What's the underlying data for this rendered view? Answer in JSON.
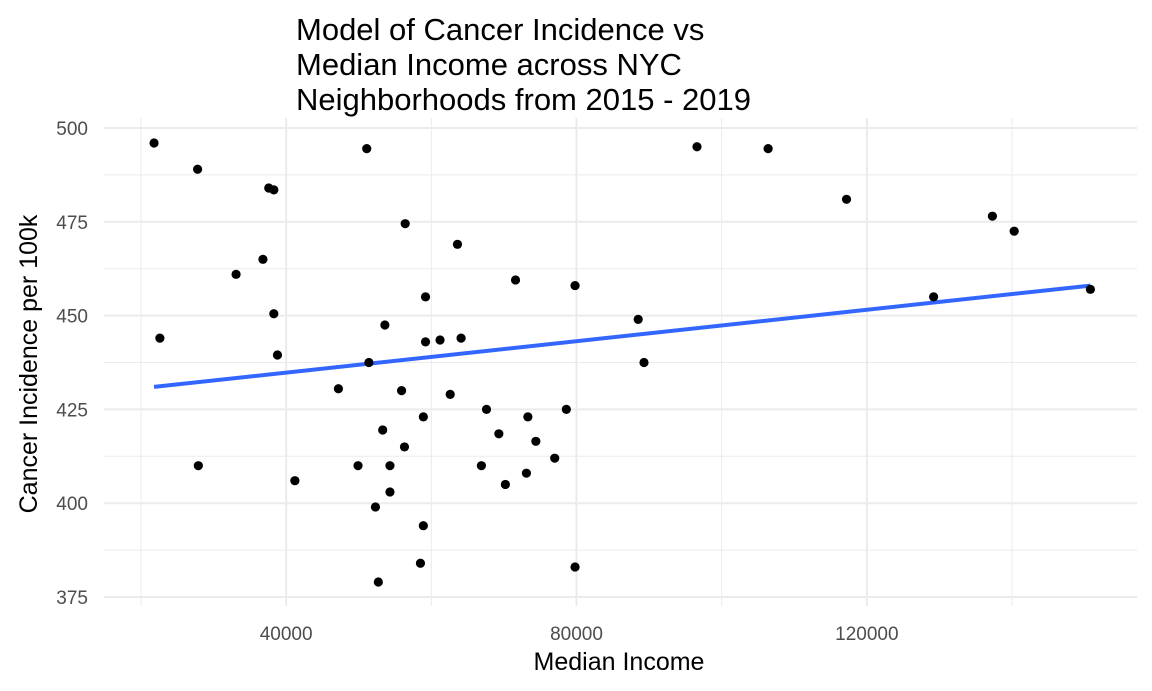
{
  "chart_data": {
    "type": "scatter",
    "title": "Model of Cancer Incidence vs\nMedian Income across NYC\nNeighborhoods from 2015 - 2019",
    "xlabel": "Median Income",
    "ylabel": "Cancer Incidence per 100k",
    "xlim": [
      12000,
      150000
    ],
    "ylim": [
      372,
      500
    ],
    "x_ticks": [
      40000,
      80000,
      120000
    ],
    "y_ticks": [
      375,
      400,
      425,
      450,
      475,
      500
    ],
    "grid": true,
    "legend": "none",
    "point_color": "#000000",
    "fit_color": "#3366ff",
    "grid_color": "#ebebeb",
    "points": [
      {
        "x": 21800,
        "y": 496
      },
      {
        "x": 22600,
        "y": 444
      },
      {
        "x": 27800,
        "y": 489
      },
      {
        "x": 27900,
        "y": 410
      },
      {
        "x": 33100,
        "y": 461
      },
      {
        "x": 36800,
        "y": 465
      },
      {
        "x": 37600,
        "y": 484
      },
      {
        "x": 38300,
        "y": 483.5
      },
      {
        "x": 38300,
        "y": 450.5
      },
      {
        "x": 38800,
        "y": 439.5
      },
      {
        "x": 41200,
        "y": 406
      },
      {
        "x": 47200,
        "y": 430.5
      },
      {
        "x": 49900,
        "y": 410
      },
      {
        "x": 51100,
        "y": 494.5
      },
      {
        "x": 51400,
        "y": 437.5
      },
      {
        "x": 52300,
        "y": 399
      },
      {
        "x": 52700,
        "y": 379
      },
      {
        "x": 53300,
        "y": 419.5
      },
      {
        "x": 53600,
        "y": 447.5
      },
      {
        "x": 54300,
        "y": 403
      },
      {
        "x": 54300,
        "y": 410
      },
      {
        "x": 55900,
        "y": 430
      },
      {
        "x": 56300,
        "y": 415
      },
      {
        "x": 56400,
        "y": 474.5
      },
      {
        "x": 58500,
        "y": 384
      },
      {
        "x": 58900,
        "y": 394
      },
      {
        "x": 58900,
        "y": 423
      },
      {
        "x": 59200,
        "y": 455
      },
      {
        "x": 59200,
        "y": 443
      },
      {
        "x": 61200,
        "y": 443.5
      },
      {
        "x": 62600,
        "y": 429
      },
      {
        "x": 63600,
        "y": 469
      },
      {
        "x": 64100,
        "y": 444
      },
      {
        "x": 66900,
        "y": 410
      },
      {
        "x": 67600,
        "y": 425
      },
      {
        "x": 69300,
        "y": 418.5
      },
      {
        "x": 70200,
        "y": 405
      },
      {
        "x": 71600,
        "y": 459.5
      },
      {
        "x": 73100,
        "y": 408
      },
      {
        "x": 73300,
        "y": 423
      },
      {
        "x": 74400,
        "y": 416.5
      },
      {
        "x": 77000,
        "y": 412
      },
      {
        "x": 78600,
        "y": 425
      },
      {
        "x": 79800,
        "y": 458
      },
      {
        "x": 79800,
        "y": 383
      },
      {
        "x": 88500,
        "y": 449
      },
      {
        "x": 89300,
        "y": 437.5
      },
      {
        "x": 96600,
        "y": 495
      },
      {
        "x": 106400,
        "y": 494.5
      },
      {
        "x": 117200,
        "y": 481
      },
      {
        "x": 129200,
        "y": 455
      },
      {
        "x": 137300,
        "y": 476.5
      },
      {
        "x": 140300,
        "y": 472.5
      },
      {
        "x": 150800,
        "y": 457
      }
    ],
    "fit_line": {
      "x": [
        21800,
        150800
      ],
      "y": [
        431,
        458
      ]
    }
  }
}
